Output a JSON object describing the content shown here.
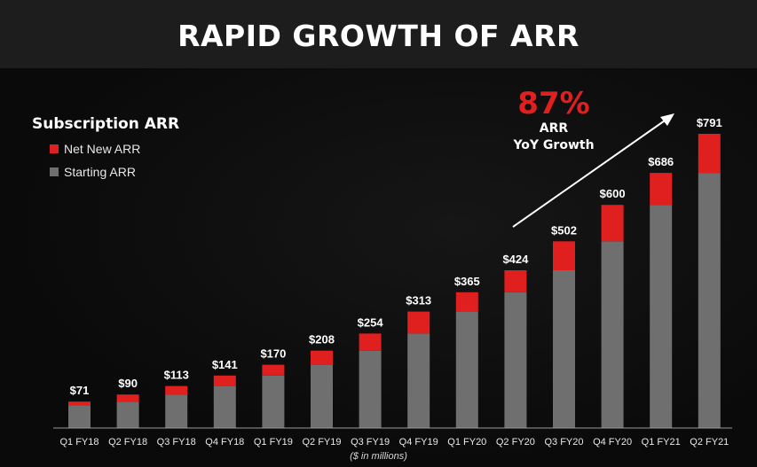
{
  "header": {
    "title": "RAPID GROWTH OF ARR"
  },
  "legend": {
    "title": "Subscription ARR",
    "items": [
      {
        "label": "Net New ARR",
        "color": "#e0201f"
      },
      {
        "label": "Starting ARR",
        "color": "#6f6f6f"
      }
    ]
  },
  "callout": {
    "value": "87%",
    "line1": "ARR",
    "line2": "YoY Growth"
  },
  "footnote": "($ in millions)",
  "colors": {
    "net_new": "#e0201f",
    "starting": "#6f6f6f",
    "background": "#0b0b0b"
  },
  "chart_data": {
    "type": "bar",
    "stacked": true,
    "title": "RAPID GROWTH OF ARR",
    "categories": [
      "Q1 FY18",
      "Q2 FY18",
      "Q3 FY18",
      "Q4 FY18",
      "Q1 FY19",
      "Q2 FY19",
      "Q3 FY19",
      "Q4 FY19",
      "Q1 FY20",
      "Q2 FY20",
      "Q3 FY20",
      "Q4 FY20",
      "Q1 FY21",
      "Q2 FY21"
    ],
    "series": [
      {
        "name": "Starting ARR",
        "values": [
          61,
          71,
          90,
          113,
          141,
          170,
          208,
          254,
          313,
          365,
          424,
          502,
          600,
          686
        ]
      },
      {
        "name": "Net New ARR",
        "values": [
          10,
          19,
          23,
          28,
          29,
          38,
          46,
          59,
          52,
          59,
          78,
          98,
          86,
          105
        ]
      }
    ],
    "totals": [
      "$71",
      "$90",
      "$113",
      "$141",
      "$170",
      "$208",
      "$254",
      "$313",
      "$365",
      "$424",
      "$502",
      "$600",
      "$686",
      "$791"
    ],
    "total_values": [
      71,
      90,
      113,
      141,
      170,
      208,
      254,
      313,
      365,
      424,
      502,
      600,
      686,
      791
    ],
    "ylim": [
      0,
      791
    ],
    "xlabel": "($ in millions)",
    "ylabel": "",
    "grid": false,
    "legend_position": "top-left"
  }
}
